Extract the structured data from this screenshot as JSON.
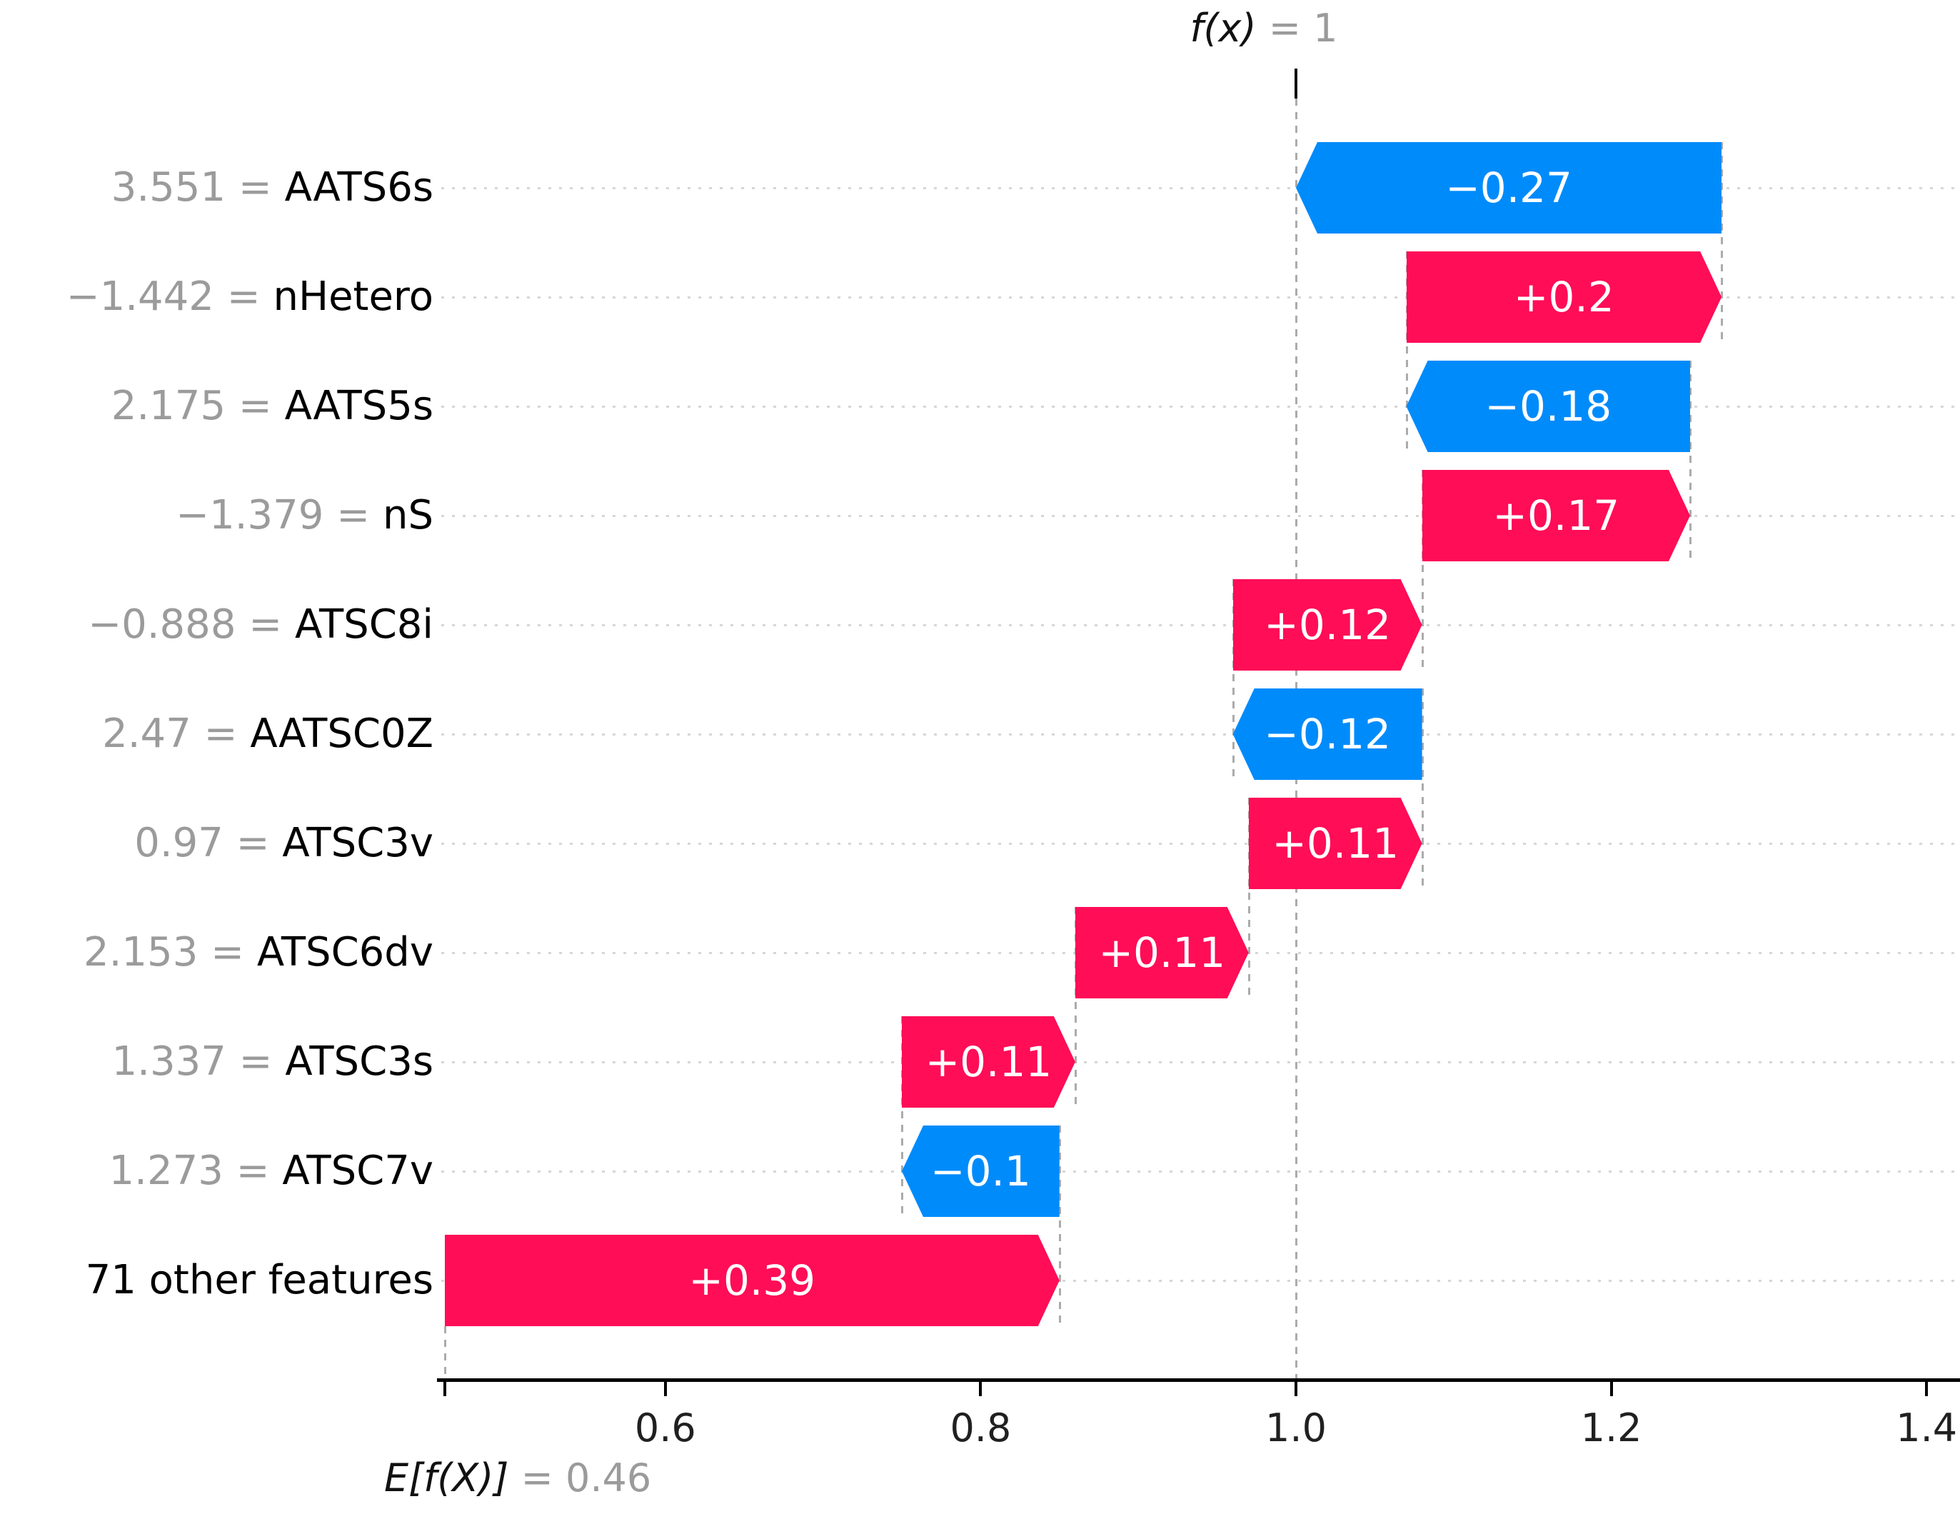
{
  "chart_data": {
    "type": "waterfall",
    "library_style": "shap-waterfall",
    "fx_label": "f(x)",
    "fx_eq": " = 1",
    "fx_value": 1.0,
    "base_label": "E[f(X)]",
    "base_eq": " = 0.46",
    "base_value": 0.46,
    "xlabel": "",
    "ylabel": "",
    "xlim": [
      0.455,
      1.417
    ],
    "grid": "dotted-row-guides",
    "xticks": [
      {
        "value": 0.6,
        "label": "0.6"
      },
      {
        "value": 0.8,
        "label": "0.8"
      },
      {
        "value": 1.0,
        "label": "1.0"
      },
      {
        "value": 1.2,
        "label": "1.2"
      },
      {
        "value": 1.4,
        "label": "1.4"
      }
    ],
    "colors": {
      "positive": "#ff0d57",
      "negative": "#008bfb",
      "bar_text": "#ffffff",
      "muted_text": "#9b9b9b",
      "axis_text": "#202020",
      "guide_dotted": "#d6d6d6",
      "connector_dashed": "#ababab"
    },
    "rows": [
      {
        "feature": "AATS6s",
        "feature_value": "3.551",
        "label": "−0.27",
        "contribution": -0.27,
        "start": 1.27,
        "end": 1.0
      },
      {
        "feature": "nHetero",
        "feature_value": "−1.442",
        "label": "+0.2",
        "contribution": 0.2,
        "start": 1.07,
        "end": 1.27
      },
      {
        "feature": "AATS5s",
        "feature_value": "2.175",
        "label": "−0.18",
        "contribution": -0.18,
        "start": 1.25,
        "end": 1.07
      },
      {
        "feature": "nS",
        "feature_value": "−1.379",
        "label": "+0.17",
        "contribution": 0.17,
        "start": 1.08,
        "end": 1.25
      },
      {
        "feature": "ATSC8i",
        "feature_value": "−0.888",
        "label": "+0.12",
        "contribution": 0.12,
        "start": 0.96,
        "end": 1.08
      },
      {
        "feature": "AATSC0Z",
        "feature_value": "2.47",
        "label": "−0.12",
        "contribution": -0.12,
        "start": 1.08,
        "end": 0.96
      },
      {
        "feature": "ATSC3v",
        "feature_value": "0.97",
        "label": "+0.11",
        "contribution": 0.11,
        "start": 0.97,
        "end": 1.08
      },
      {
        "feature": "ATSC6dv",
        "feature_value": "2.153",
        "label": "+0.11",
        "contribution": 0.11,
        "start": 0.86,
        "end": 0.97
      },
      {
        "feature": "ATSC3s",
        "feature_value": "1.337",
        "label": "+0.11",
        "contribution": 0.11,
        "start": 0.75,
        "end": 0.86
      },
      {
        "feature": "ATSC7v",
        "feature_value": "1.273",
        "label": "−0.1",
        "contribution": -0.1,
        "start": 0.85,
        "end": 0.75
      },
      {
        "feature": "71 other features",
        "feature_value": null,
        "label": "+0.39",
        "contribution": 0.39,
        "start": 0.46,
        "end": 0.85
      }
    ]
  }
}
